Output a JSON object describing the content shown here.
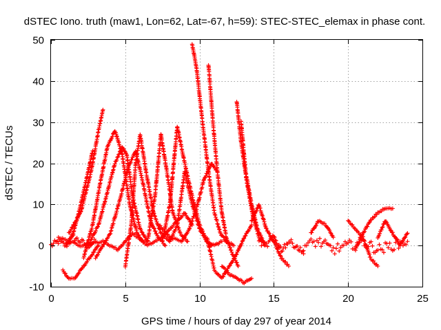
{
  "chart_data": {
    "type": "scatter",
    "title": "dSTEC Iono. truth (maw1, Lon=62, Lat=-67, h=59): STEC-STEC_elemax in phase cont.",
    "xlabel": "GPS time / hours of day 297 of year 2014",
    "ylabel": "dSTEC  / TECUs",
    "xlim": [
      0,
      25
    ],
    "ylim": [
      -10,
      50
    ],
    "xticks": [
      0,
      5,
      10,
      15,
      20,
      25
    ],
    "yticks": [
      -10,
      0,
      10,
      20,
      30,
      40,
      50
    ],
    "grid": true,
    "marker": "plus",
    "color": "#ff0000",
    "series": [
      {
        "x": [
          0,
          0.5,
          1.0,
          1.5,
          2.0,
          2.5,
          3.0
        ],
        "y": [
          0,
          1,
          0,
          2,
          1,
          0,
          1
        ],
        "noise": 1.5
      },
      {
        "x": [
          1.0,
          1.5,
          2.0,
          2.5,
          2.8
        ],
        "y": [
          0,
          3,
          10,
          18,
          23
        ]
      },
      {
        "x": [
          1.2,
          2.0,
          2.7,
          3.2,
          3.5
        ],
        "y": [
          3,
          8,
          18,
          28,
          33
        ]
      },
      {
        "x": [
          0.8,
          1.2,
          1.6,
          2.0,
          2.6,
          3.2
        ],
        "y": [
          -6,
          -8,
          -8,
          -6,
          -3,
          0
        ]
      },
      {
        "x": [
          2.2,
          2.8,
          3.3,
          3.8,
          4.3,
          4.8,
          5.3,
          5.8,
          6.2
        ],
        "y": [
          -3,
          5,
          15,
          24,
          28,
          22,
          10,
          3,
          1
        ]
      },
      {
        "x": [
          2.5,
          3.2,
          3.8,
          4.3,
          4.8,
          5.1,
          5.5,
          6.0,
          6.5
        ],
        "y": [
          0,
          5,
          13,
          20,
          24,
          22,
          12,
          4,
          1
        ]
      },
      {
        "x": [
          3.0,
          4.0,
          4.7,
          5.2,
          5.7,
          6.2,
          6.7,
          7.2,
          7.7
        ],
        "y": [
          -3,
          3,
          12,
          19,
          23,
          15,
          6,
          2,
          0
        ]
      },
      {
        "x": [
          5.0,
          5.4,
          5.7,
          6.0,
          6.4,
          6.9,
          7.4,
          8.0
        ],
        "y": [
          -5,
          5,
          20,
          27,
          18,
          8,
          3,
          1
        ]
      },
      {
        "x": [
          6.5,
          7.0,
          7.4,
          7.8,
          8.2,
          8.7,
          9.2
        ],
        "y": [
          1,
          12,
          27,
          18,
          8,
          3,
          1
        ]
      },
      {
        "x": [
          7.5,
          8.0,
          8.5,
          9.0,
          9.5,
          10.0,
          10.5,
          10.8
        ],
        "y": [
          1,
          10,
          29,
          20,
          12,
          5,
          1,
          0
        ]
      },
      {
        "x": [
          0.5,
          2.0,
          3.5,
          4.5,
          5.5,
          6.5,
          7.5,
          8.5,
          9.0,
          9.5
        ],
        "y": [
          2,
          0,
          1,
          -1,
          3,
          0,
          2,
          6,
          8,
          5
        ]
      },
      {
        "x": [
          7.3,
          8.0,
          8.8,
          9.3,
          9.8,
          10.3,
          10.8,
          11.2
        ],
        "y": [
          5,
          2,
          1,
          4,
          9,
          16,
          20,
          18
        ]
      },
      {
        "x": [
          8.0,
          8.5,
          9.0,
          9.5,
          10.0,
          10.5,
          11.0,
          11.5
        ],
        "y": [
          1,
          5,
          18,
          10,
          4,
          1,
          0,
          1
        ]
      },
      {
        "x": [
          9.5,
          9.8,
          10.2,
          10.6,
          11.0,
          11.4,
          11.8,
          12.3
        ],
        "y": [
          49,
          43,
          30,
          18,
          8,
          3,
          1,
          0
        ]
      },
      {
        "x": [
          10.6,
          10.9,
          11.2,
          11.5,
          11.8,
          12.2,
          12.6
        ],
        "y": [
          44,
          30,
          18,
          8,
          2,
          -2,
          -5
        ]
      },
      {
        "x": [
          10.5,
          11.0,
          11.5,
          12.0,
          12.5,
          13.0,
          13.5
        ],
        "y": [
          2,
          -6,
          -8,
          -5,
          -2,
          2,
          5
        ]
      },
      {
        "x": [
          11.5,
          12.0,
          12.5,
          13.0,
          13.5
        ],
        "y": [
          -5,
          -7,
          -8,
          -9,
          -8
        ]
      },
      {
        "x": [
          12.5,
          12.8,
          13.2,
          13.6,
          14.0,
          14.4
        ],
        "y": [
          35,
          25,
          15,
          7,
          2,
          0
        ]
      },
      {
        "x": [
          12.8,
          13.1,
          13.5,
          13.9,
          14.3
        ],
        "y": [
          30,
          18,
          10,
          4,
          1
        ]
      },
      {
        "x": [
          13.5,
          14.0,
          14.5,
          15.0,
          15.5,
          16.0
        ],
        "y": [
          6,
          10,
          4,
          1,
          -3,
          -5
        ]
      },
      {
        "x": [
          14.0,
          14.5,
          15.0,
          15.5,
          16.0,
          16.5,
          17.0
        ],
        "y": [
          1,
          0,
          2,
          -1,
          1,
          0,
          -2
        ],
        "noise": 1.5
      },
      {
        "x": [
          17.0,
          18.0,
          19.0,
          20.0,
          21.0,
          22.0,
          23.0,
          24.0
        ],
        "y": [
          0,
          1,
          -1,
          0,
          1,
          -1,
          0,
          1
        ],
        "noise": 2.5
      },
      {
        "x": [
          17.5,
          18.0,
          18.5,
          19.0
        ],
        "y": [
          3,
          6,
          5,
          2
        ]
      },
      {
        "x": [
          20.5,
          21.0,
          21.5,
          22.0,
          22.5,
          23.0
        ],
        "y": [
          -1,
          3,
          6,
          8,
          9,
          9
        ]
      },
      {
        "x": [
          20.0,
          20.5,
          21.0,
          21.5,
          22.0
        ],
        "y": [
          6,
          4,
          2,
          -3,
          -5
        ]
      },
      {
        "x": [
          22.0,
          22.5,
          23.0,
          23.5,
          24.0
        ],
        "y": [
          2,
          6,
          3,
          0,
          3
        ]
      }
    ]
  }
}
